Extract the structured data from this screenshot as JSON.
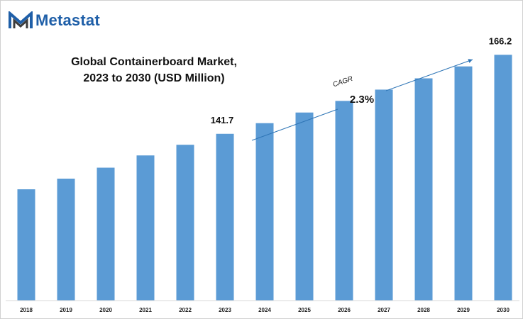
{
  "brand": {
    "name": "Metastat"
  },
  "colors": {
    "bar": "#5b9bd5",
    "brand": "#1f5fa8",
    "arrow": "#2e75b6"
  },
  "chart_data": {
    "type": "bar",
    "title": "Global Containerboard Market,\n2023 to 2030 (USD Million)",
    "title_lines": [
      "Global Containerboard Market,",
      "2023 to 2030 (USD Million)"
    ],
    "categories": [
      "2018",
      "2019",
      "2020",
      "2021",
      "2022",
      "2023",
      "2024",
      "2025",
      "2026",
      "2027",
      "2028",
      "2029",
      "2030"
    ],
    "values": [
      124.5,
      127.8,
      131.2,
      135.0,
      138.3,
      141.7,
      145.0,
      148.3,
      151.9,
      155.4,
      158.9,
      162.6,
      166.2
    ],
    "ylim": [
      90,
      170
    ],
    "grid": false,
    "labels": [
      {
        "category": "2023",
        "text": "141.7"
      },
      {
        "category": "2030",
        "text": "166.2"
      }
    ],
    "cagr": {
      "label": "CAGR",
      "value": "2.3%"
    }
  }
}
